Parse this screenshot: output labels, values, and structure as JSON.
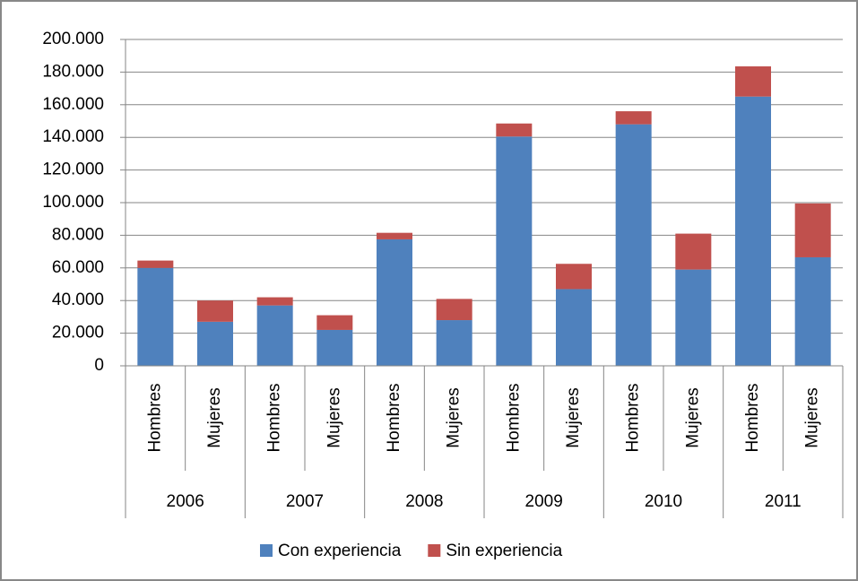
{
  "chart_data": {
    "type": "stacked_bar",
    "categories": [
      "Hombres",
      "Mujeres",
      "Hombres",
      "Mujeres",
      "Hombres",
      "Mujeres",
      "Hombres",
      "Mujeres",
      "Hombres",
      "Mujeres",
      "Hombres",
      "Mujeres"
    ],
    "groups": [
      "2006",
      "2007",
      "2008",
      "2009",
      "2010",
      "2011"
    ],
    "series": [
      {
        "name": "Con experiencia",
        "color": "#4f81bd",
        "values": [
          60000,
          27000,
          37000,
          22000,
          77500,
          28000,
          140500,
          47000,
          148000,
          59000,
          165000,
          66500
        ]
      },
      {
        "name": "Sin experiencia",
        "color": "#c0504d",
        "values": [
          4500,
          13000,
          5000,
          9000,
          4000,
          13000,
          8000,
          15500,
          8000,
          22000,
          18500,
          33000
        ]
      }
    ],
    "ylim": [
      0,
      200000
    ],
    "yticks": [
      0,
      {
        "value": 20000,
        "label": "20.000"
      },
      {
        "value": 40000,
        "label": "40.000"
      },
      {
        "value": 60000,
        "label": "60.000"
      },
      {
        "value": 80000,
        "label": "80.000"
      },
      {
        "value": 100000,
        "label": "100.000"
      },
      {
        "value": 120000,
        "label": "120.000"
      },
      {
        "value": 140000,
        "label": "140.000"
      },
      {
        "value": 160000,
        "label": "160.000"
      },
      {
        "value": 180000,
        "label": "180.000"
      },
      {
        "value": 200000,
        "label": "200.000"
      }
    ],
    "grid": true,
    "legend": "bottom"
  }
}
